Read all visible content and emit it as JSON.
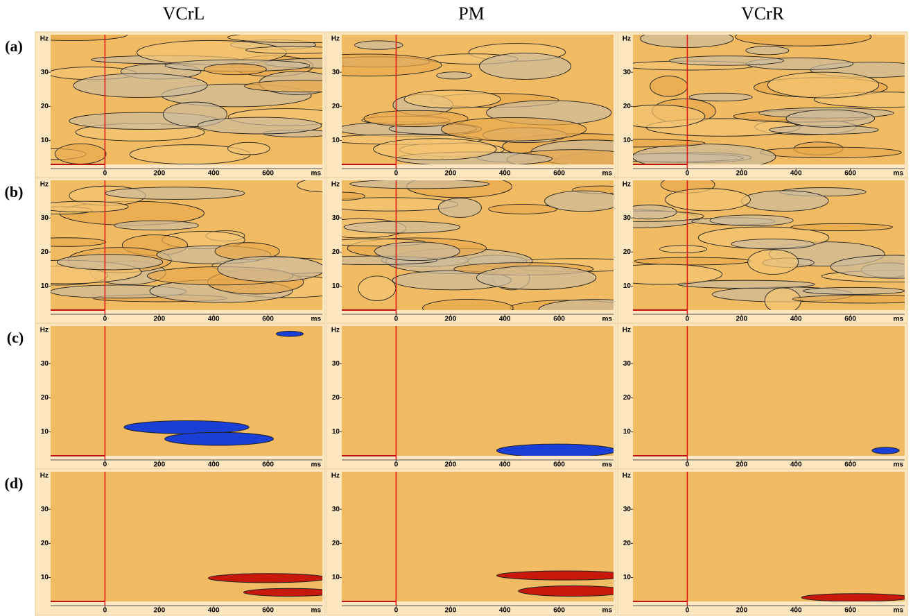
{
  "columns": [
    "VCrL",
    "PM",
    "VCrR"
  ],
  "rows": [
    "(a)",
    "(b)",
    "(c)",
    "(d)"
  ],
  "axes": {
    "x_label": "ms",
    "y_label": "Hz",
    "xlim": [
      -200,
      800
    ],
    "ylim": [
      3,
      41
    ],
    "xticks": [
      0,
      200,
      400,
      600
    ],
    "yticks": [
      10,
      20,
      30
    ]
  }
}
